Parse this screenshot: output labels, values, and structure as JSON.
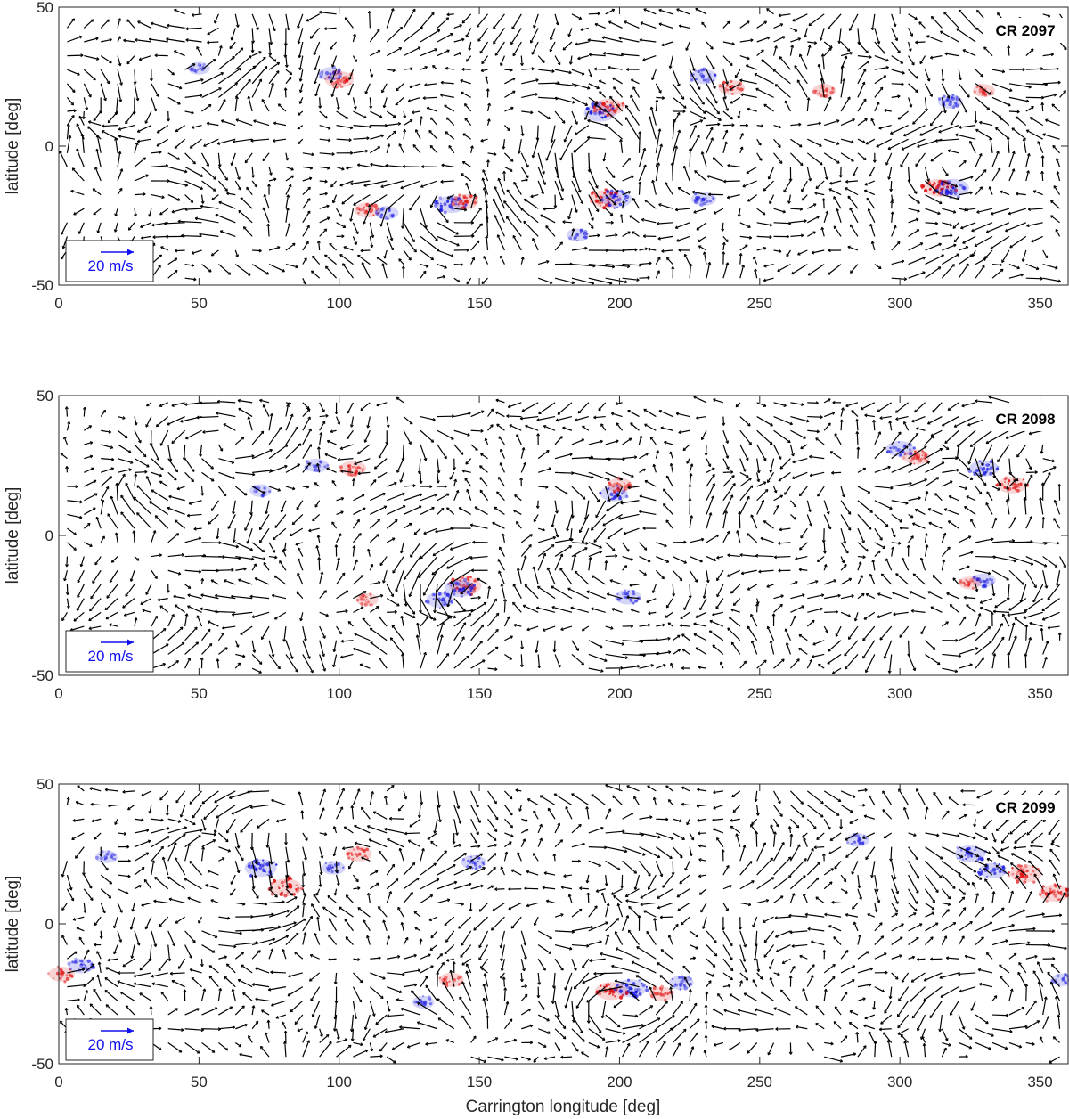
{
  "figure": {
    "xlabel": "Carrington longitude [deg]",
    "reference_arrow_label": "20 m/s",
    "colors": {
      "arrow": "#000000",
      "positive_polarity": "#e01010",
      "negative_polarity": "#1818e0",
      "reference_arrow": "#1010ee",
      "axis": "#262626"
    }
  },
  "chart_data": [
    {
      "type": "scatter",
      "subtype": "quiver-flow-map",
      "title": "CR 2097",
      "xlabel": "",
      "ylabel": "latitude [deg]",
      "xlim": [
        0,
        360
      ],
      "ylim": [
        -50,
        50
      ],
      "xticks": [
        "0",
        "50",
        "100",
        "150",
        "200",
        "250",
        "300",
        "350"
      ],
      "yticks": [
        "-50",
        "0",
        "50"
      ],
      "reference_arrow": {
        "speed_mps": 20,
        "label": "20 m/s"
      },
      "arrow_grid": {
        "dlon_deg": 6,
        "dlat_deg": 5
      },
      "active_regions": [
        {
          "lon": 100,
          "lat": 24,
          "polarity": "positive",
          "strength": 0.8
        },
        {
          "lon": 97,
          "lat": 26,
          "polarity": "negative",
          "strength": 0.4
        },
        {
          "lon": 193,
          "lat": 12,
          "polarity": "negative",
          "strength": 1.0
        },
        {
          "lon": 196,
          "lat": 14,
          "polarity": "positive",
          "strength": 0.9
        },
        {
          "lon": 230,
          "lat": 25,
          "polarity": "negative",
          "strength": 0.6
        },
        {
          "lon": 240,
          "lat": 21,
          "polarity": "positive",
          "strength": 0.6
        },
        {
          "lon": 273,
          "lat": 20,
          "polarity": "positive",
          "strength": 0.4
        },
        {
          "lon": 318,
          "lat": 16,
          "polarity": "negative",
          "strength": 0.5
        },
        {
          "lon": 330,
          "lat": 20,
          "polarity": "positive",
          "strength": 0.3
        },
        {
          "lon": 314,
          "lat": -15,
          "polarity": "positive",
          "strength": 1.0
        },
        {
          "lon": 319,
          "lat": -15,
          "polarity": "negative",
          "strength": 1.0
        },
        {
          "lon": 195,
          "lat": -19,
          "polarity": "positive",
          "strength": 1.0
        },
        {
          "lon": 199,
          "lat": -19,
          "polarity": "negative",
          "strength": 0.9
        },
        {
          "lon": 140,
          "lat": -21,
          "polarity": "negative",
          "strength": 0.9
        },
        {
          "lon": 145,
          "lat": -20,
          "polarity": "positive",
          "strength": 0.6
        },
        {
          "lon": 110,
          "lat": -23,
          "polarity": "positive",
          "strength": 0.6
        },
        {
          "lon": 117,
          "lat": -24,
          "polarity": "negative",
          "strength": 0.4
        },
        {
          "lon": 230,
          "lat": -19,
          "polarity": "negative",
          "strength": 0.5
        },
        {
          "lon": 185,
          "lat": -32,
          "polarity": "negative",
          "strength": 0.3
        },
        {
          "lon": 50,
          "lat": 28,
          "polarity": "negative",
          "strength": 0.3
        }
      ]
    },
    {
      "type": "scatter",
      "subtype": "quiver-flow-map",
      "title": "CR 2098",
      "xlabel": "",
      "ylabel": "latitude [deg]",
      "xlim": [
        0,
        360
      ],
      "ylim": [
        -50,
        50
      ],
      "xticks": [
        "0",
        "50",
        "100",
        "150",
        "200",
        "250",
        "300",
        "350"
      ],
      "yticks": [
        "-50",
        "0",
        "50"
      ],
      "reference_arrow": {
        "speed_mps": 20,
        "label": "20 m/s"
      },
      "arrow_grid": {
        "dlon_deg": 6,
        "dlat_deg": 5
      },
      "active_regions": [
        {
          "lon": 105,
          "lat": 24,
          "polarity": "positive",
          "strength": 0.6
        },
        {
          "lon": 92,
          "lat": 25,
          "polarity": "negative",
          "strength": 0.4
        },
        {
          "lon": 72,
          "lat": 16,
          "polarity": "negative",
          "strength": 0.3
        },
        {
          "lon": 198,
          "lat": 15,
          "polarity": "negative",
          "strength": 0.7
        },
        {
          "lon": 200,
          "lat": 18,
          "polarity": "positive",
          "strength": 0.5
        },
        {
          "lon": 300,
          "lat": 31,
          "polarity": "negative",
          "strength": 0.7
        },
        {
          "lon": 306,
          "lat": 28,
          "polarity": "positive",
          "strength": 0.6
        },
        {
          "lon": 330,
          "lat": 24,
          "polarity": "negative",
          "strength": 0.8
        },
        {
          "lon": 340,
          "lat": 18,
          "polarity": "positive",
          "strength": 0.8
        },
        {
          "lon": 145,
          "lat": -18,
          "polarity": "positive",
          "strength": 1.0
        },
        {
          "lon": 143,
          "lat": -19,
          "polarity": "negative",
          "strength": 0.9
        },
        {
          "lon": 136,
          "lat": -23,
          "polarity": "negative",
          "strength": 0.7
        },
        {
          "lon": 203,
          "lat": -22,
          "polarity": "negative",
          "strength": 0.6
        },
        {
          "lon": 110,
          "lat": -23,
          "polarity": "positive",
          "strength": 0.3
        },
        {
          "lon": 330,
          "lat": -16,
          "polarity": "negative",
          "strength": 0.4
        },
        {
          "lon": 325,
          "lat": -17,
          "polarity": "positive",
          "strength": 0.3
        }
      ]
    },
    {
      "type": "scatter",
      "subtype": "quiver-flow-map",
      "title": "CR 2099",
      "xlabel": "Carrington longitude [deg]",
      "ylabel": "latitude [deg]",
      "xlim": [
        0,
        360
      ],
      "ylim": [
        -50,
        50
      ],
      "xticks": [
        "0",
        "50",
        "100",
        "150",
        "200",
        "250",
        "300",
        "350"
      ],
      "yticks": [
        "-50",
        "0",
        "50"
      ],
      "reference_arrow": {
        "speed_mps": 20,
        "label": "20 m/s"
      },
      "arrow_grid": {
        "dlon_deg": 6,
        "dlat_deg": 5
      },
      "active_regions": [
        {
          "lon": 72,
          "lat": 20,
          "polarity": "negative",
          "strength": 1.0
        },
        {
          "lon": 81,
          "lat": 13,
          "polarity": "positive",
          "strength": 1.0
        },
        {
          "lon": 107,
          "lat": 25,
          "polarity": "positive",
          "strength": 0.6
        },
        {
          "lon": 98,
          "lat": 20,
          "polarity": "negative",
          "strength": 0.4
        },
        {
          "lon": 17,
          "lat": 24,
          "polarity": "negative",
          "strength": 0.3
        },
        {
          "lon": 148,
          "lat": 22,
          "polarity": "negative",
          "strength": 0.5
        },
        {
          "lon": 325,
          "lat": 25,
          "polarity": "negative",
          "strength": 0.9
        },
        {
          "lon": 333,
          "lat": 19,
          "polarity": "negative",
          "strength": 0.7
        },
        {
          "lon": 345,
          "lat": 18,
          "polarity": "positive",
          "strength": 1.0
        },
        {
          "lon": 355,
          "lat": 11,
          "polarity": "positive",
          "strength": 0.9
        },
        {
          "lon": 197,
          "lat": -24,
          "polarity": "positive",
          "strength": 1.0
        },
        {
          "lon": 204,
          "lat": -23,
          "polarity": "negative",
          "strength": 1.0
        },
        {
          "lon": 215,
          "lat": -25,
          "polarity": "positive",
          "strength": 0.5
        },
        {
          "lon": 222,
          "lat": -21,
          "polarity": "negative",
          "strength": 0.5
        },
        {
          "lon": 140,
          "lat": -20,
          "polarity": "positive",
          "strength": 0.5
        },
        {
          "lon": 8,
          "lat": -15,
          "polarity": "negative",
          "strength": 0.6
        },
        {
          "lon": 1,
          "lat": -18,
          "polarity": "positive",
          "strength": 0.6
        },
        {
          "lon": 130,
          "lat": -28,
          "polarity": "negative",
          "strength": 0.3
        },
        {
          "lon": 285,
          "lat": 30,
          "polarity": "negative",
          "strength": 0.4
        },
        {
          "lon": 358,
          "lat": -20,
          "polarity": "negative",
          "strength": 0.3
        }
      ]
    }
  ]
}
